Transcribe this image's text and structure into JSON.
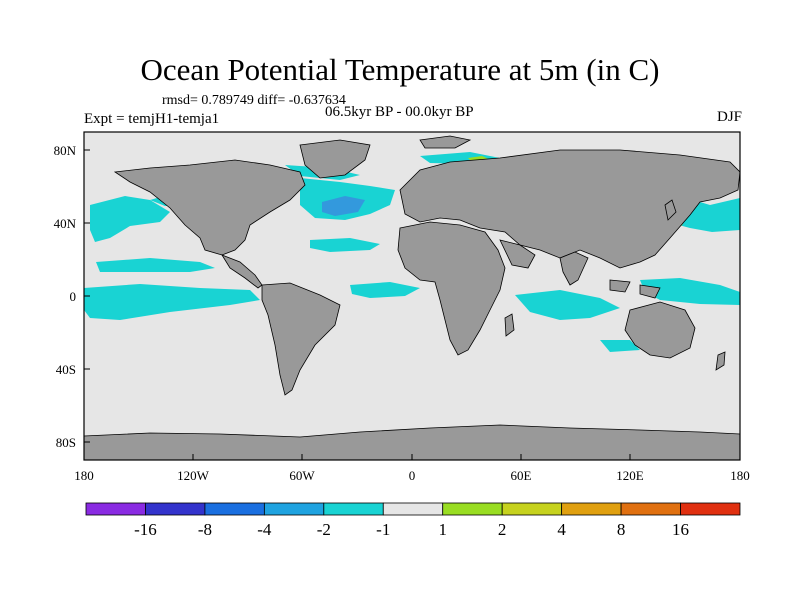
{
  "title": "Ocean Potential Temperature at 5m (in C)",
  "stats": "rmsd= 0.789749  diff= -0.637634",
  "expt": "Expt = temjH1-temja1",
  "period": "06.5kyr BP - 00.0kyr BP",
  "season": "DJF",
  "colors": {
    "ocean": "#e6e6e6",
    "land": "#999999",
    "cyan": "#19d3d3",
    "blue": "#3399dd",
    "green": "#99dd22",
    "yellowgreen": "#c6d21e"
  },
  "map": {
    "lon_ticks": [
      "180",
      "120W",
      "60W",
      "0",
      "60E",
      "120E",
      "180"
    ],
    "lat_ticks": [
      "80N",
      "40N",
      "0",
      "40S",
      "80S"
    ]
  },
  "colorbar": {
    "colors": [
      "#8a2be2",
      "#3333cc",
      "#1a6fe0",
      "#1fa3e0",
      "#19d3d3",
      "#e6e6e6",
      "#99dd22",
      "#c6d21e",
      "#e0a010",
      "#e07010",
      "#e03010"
    ],
    "labels": [
      "-16",
      "-8",
      "-4",
      "-2",
      "-1",
      "1",
      "2",
      "4",
      "8",
      "16"
    ]
  }
}
